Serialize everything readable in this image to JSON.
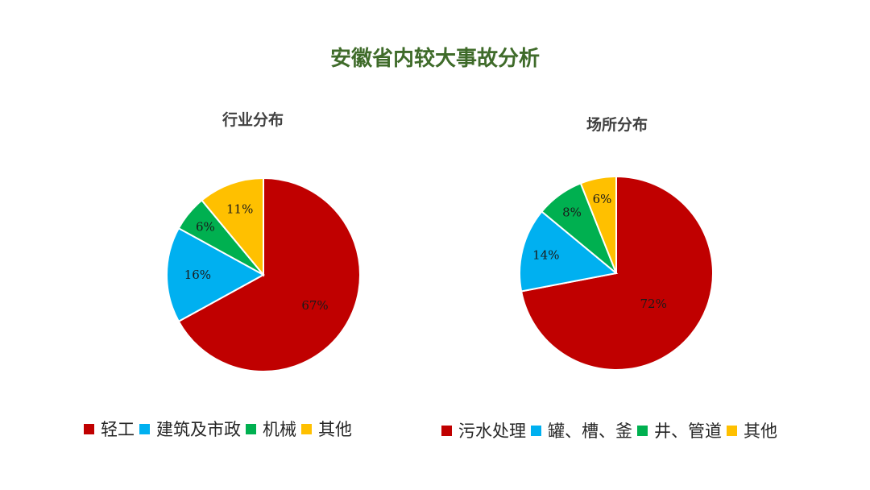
{
  "title": "安徽省内较大事故分析",
  "colors": {
    "title": "#3f6b2a",
    "chart_title": "#404040"
  },
  "chart_data": [
    {
      "type": "pie",
      "title": "行业分布",
      "start_angle_deg": 0,
      "categories": [
        "轻工",
        "建筑及市政",
        "机械",
        "其他"
      ],
      "values": [
        67,
        16,
        6,
        11
      ],
      "labels": [
        "67%",
        "16%",
        "6%",
        "11%"
      ],
      "colors": [
        "#c00000",
        "#00b0f0",
        "#00b050",
        "#ffc000"
      ],
      "legend": {
        "position": "bottom",
        "entries": [
          "轻工",
          "建筑及市政",
          "机械",
          "其他"
        ]
      }
    },
    {
      "type": "pie",
      "title": "场所分布",
      "start_angle_deg": 0,
      "categories": [
        "污水处理",
        "罐、槽、釜",
        "井、管道",
        "其他"
      ],
      "values": [
        72,
        14,
        8,
        6
      ],
      "labels": [
        "72%",
        "14%",
        "8%",
        "6%"
      ],
      "colors": [
        "#c00000",
        "#00b0f0",
        "#00b050",
        "#ffc000"
      ],
      "legend": {
        "position": "bottom",
        "entries": [
          "污水处理",
          "罐、槽、釜",
          "井、管道",
          "其他"
        ]
      }
    }
  ]
}
